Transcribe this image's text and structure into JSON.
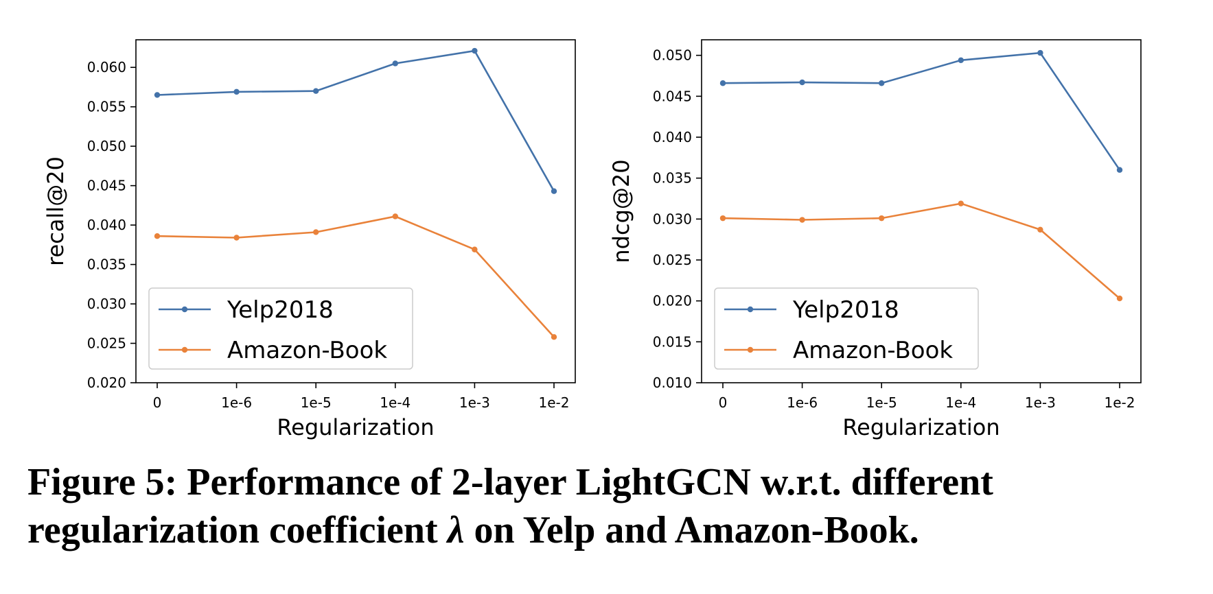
{
  "caption": {
    "line1": "Figure 5: Performance of 2-layer LightGCN w.r.t. different",
    "line2_before": "regularization coefficient ",
    "symbol": "λ",
    "line2_after": " on Yelp and Amazon-Book."
  },
  "colors": {
    "Yelp2018": "#4372a9",
    "Amazon-Book": "#e9823a"
  },
  "chart_data": [
    {
      "type": "line",
      "xlabel": "Regularization",
      "ylabel": "recall@20",
      "categories": [
        "0",
        "1e-6",
        "1e-5",
        "1e-4",
        "1e-3",
        "1e-2"
      ],
      "ylim": [
        0.02,
        0.0635
      ],
      "yticks": [
        "0.020",
        "0.025",
        "0.030",
        "0.035",
        "0.040",
        "0.045",
        "0.050",
        "0.055",
        "0.060"
      ],
      "legend": "lower-left",
      "grid": false,
      "series": [
        {
          "name": "Yelp2018",
          "values": [
            0.0565,
            0.0569,
            0.057,
            0.0605,
            0.0621,
            0.0443
          ]
        },
        {
          "name": "Amazon-Book",
          "values": [
            0.0386,
            0.0384,
            0.0391,
            0.0411,
            0.0369,
            0.0258
          ]
        }
      ]
    },
    {
      "type": "line",
      "xlabel": "Regularization",
      "ylabel": "ndcg@20",
      "categories": [
        "0",
        "1e-6",
        "1e-5",
        "1e-4",
        "1e-3",
        "1e-2"
      ],
      "ylim": [
        0.01,
        0.0519
      ],
      "yticks": [
        "0.010",
        "0.015",
        "0.020",
        "0.025",
        "0.030",
        "0.035",
        "0.040",
        "0.045",
        "0.050"
      ],
      "legend": "lower-left",
      "grid": false,
      "series": [
        {
          "name": "Yelp2018",
          "values": [
            0.0466,
            0.0467,
            0.0466,
            0.0494,
            0.0503,
            0.036
          ]
        },
        {
          "name": "Amazon-Book",
          "values": [
            0.0301,
            0.0299,
            0.0301,
            0.0319,
            0.0287,
            0.0203
          ]
        }
      ]
    }
  ]
}
